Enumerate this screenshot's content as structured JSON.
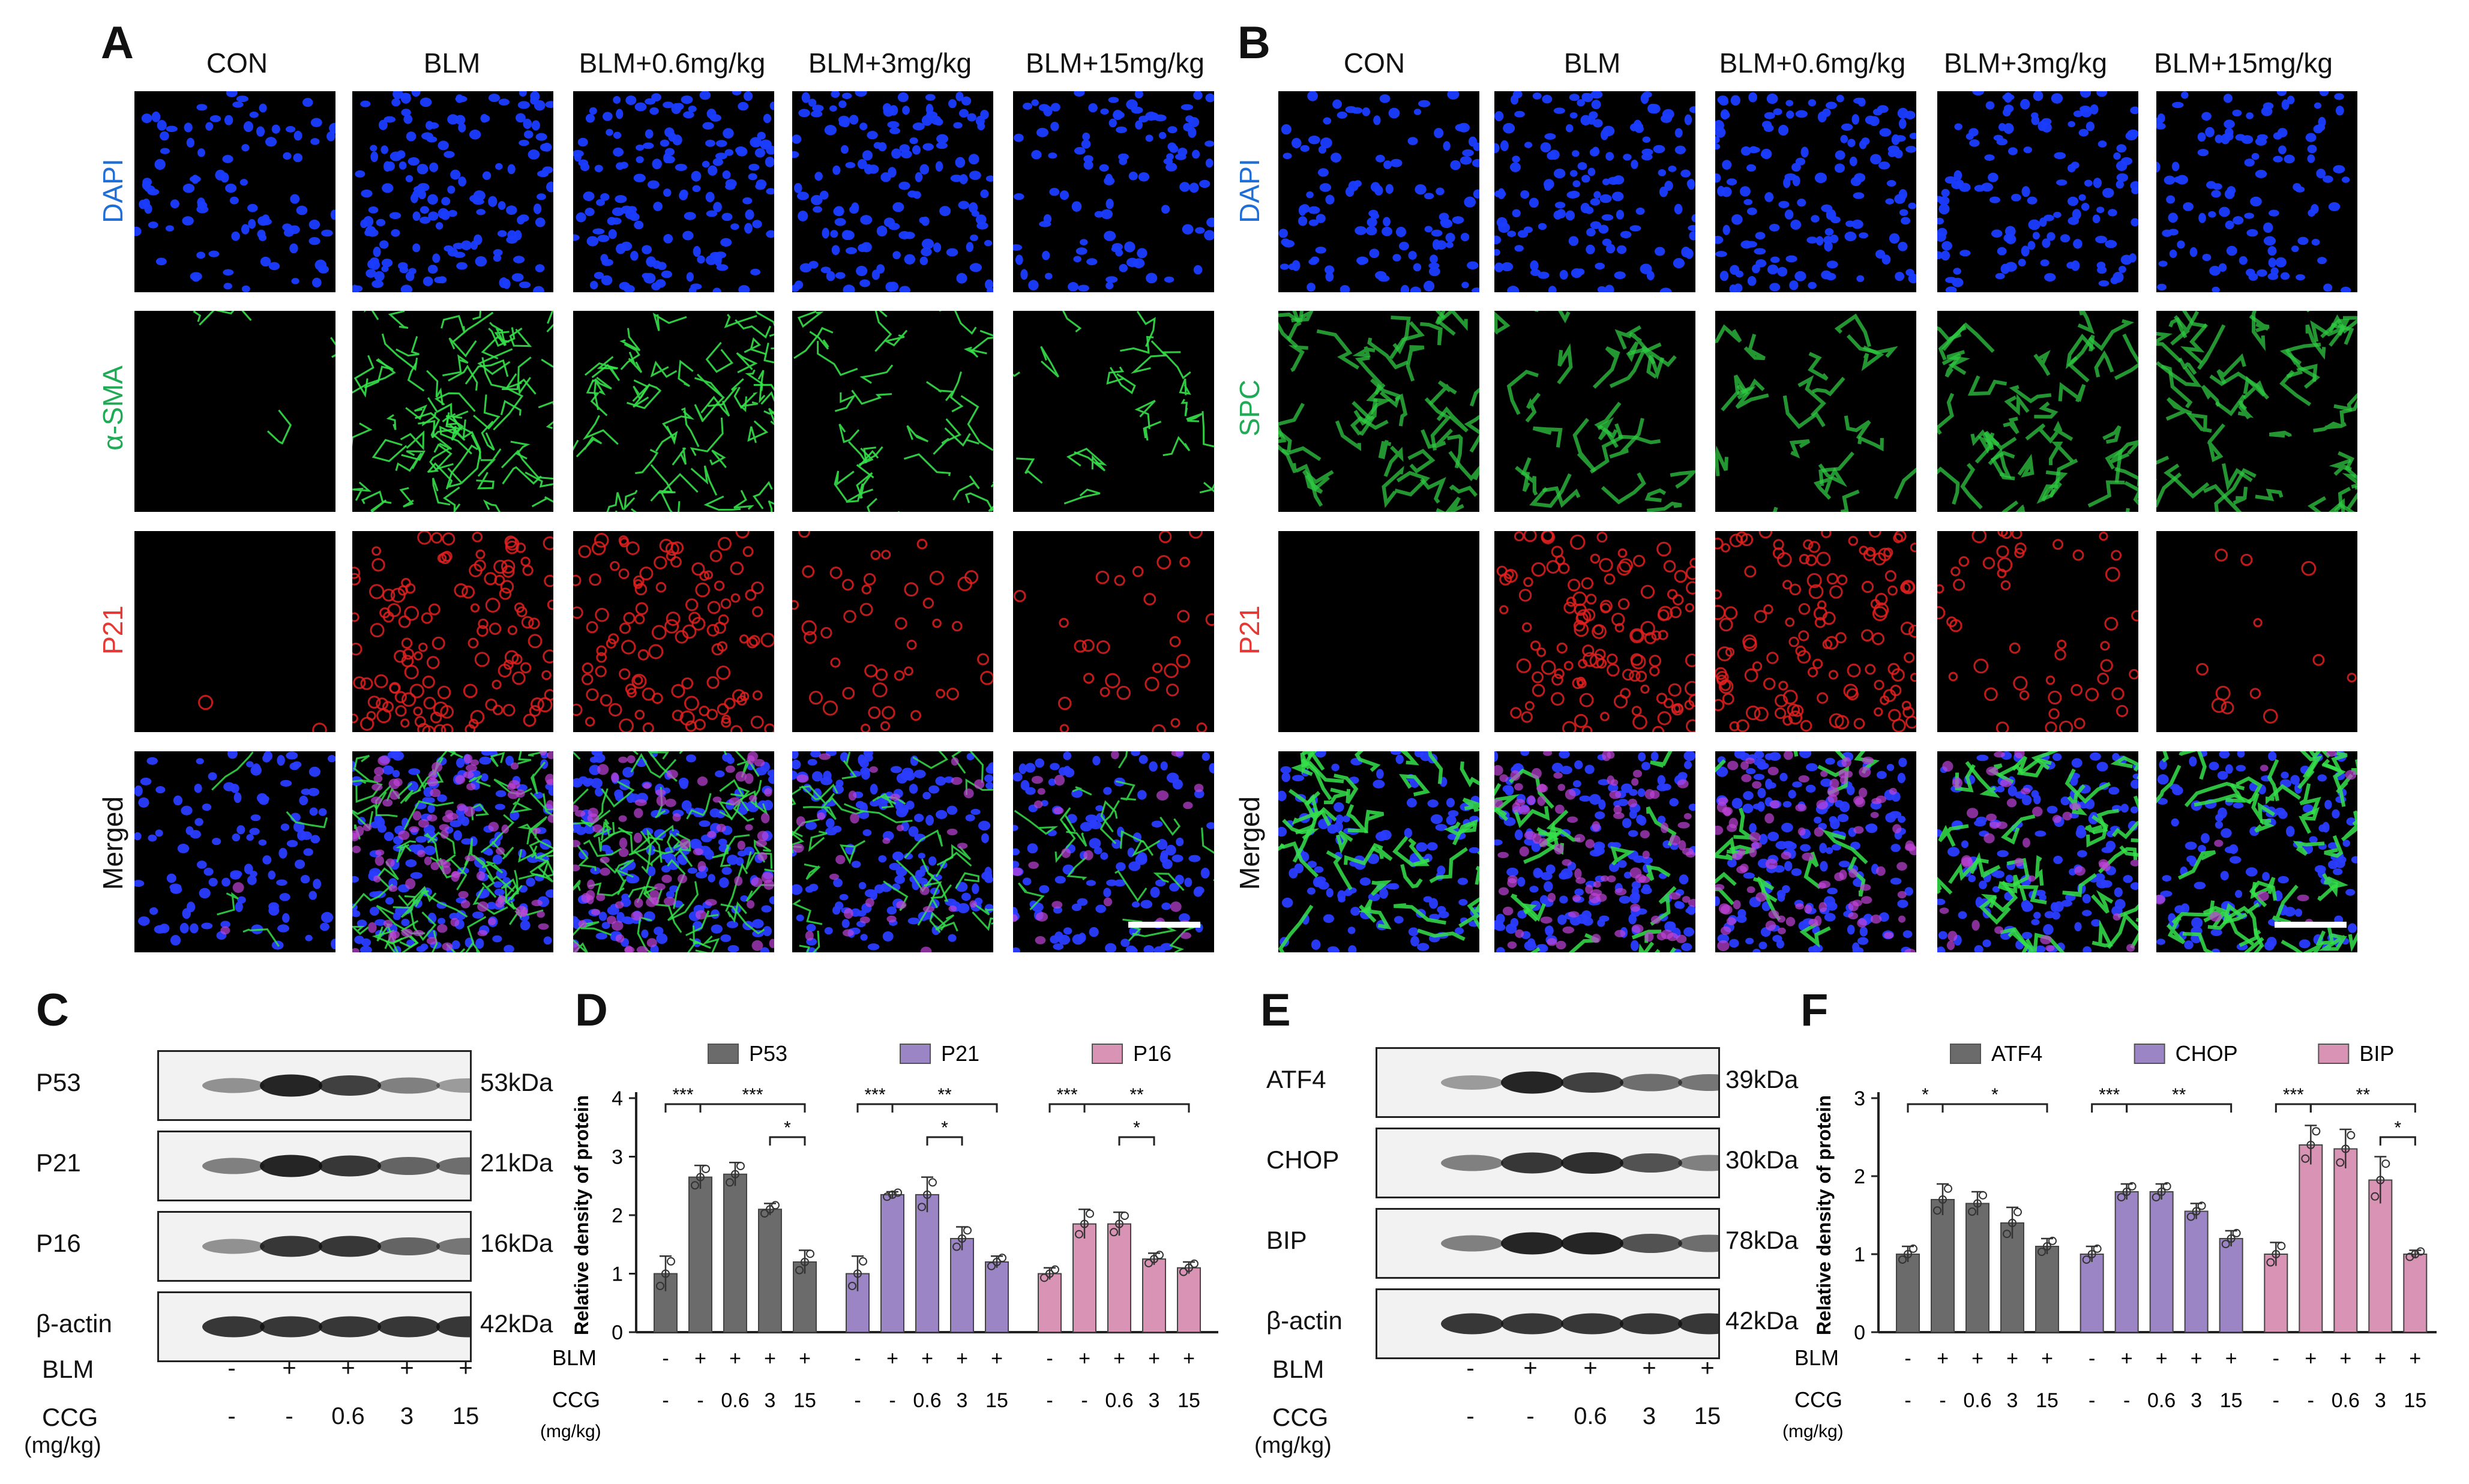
{
  "micrographs": {
    "A": {
      "letter": "A",
      "columns": [
        "CON",
        "BLM",
        "BLM+0.6mg/kg",
        "BLM+3mg/kg",
        "BLM+15mg/kg"
      ],
      "rows": [
        {
          "label": "DAPI",
          "color": "#1f6fd6",
          "stain": "dapi"
        },
        {
          "label": "α-SMA",
          "color": "#1faa55",
          "stain": "sma"
        },
        {
          "label": "P21",
          "color": "#e53935",
          "stain": "p21"
        },
        {
          "label": "Merged",
          "color": "#111111",
          "stain": "merged"
        }
      ],
      "density": {
        "dapi": [
          0.45,
          1.0,
          1.0,
          0.9,
          0.55
        ],
        "sma": [
          0.05,
          1.0,
          0.8,
          0.45,
          0.3
        ],
        "p21": [
          0.02,
          1.0,
          0.9,
          0.35,
          0.25
        ]
      }
    },
    "B": {
      "letter": "B",
      "columns": [
        "CON",
        "BLM",
        "BLM+0.6mg/kg",
        "BLM+3mg/kg",
        "BLM+15mg/kg"
      ],
      "rows": [
        {
          "label": "DAPI",
          "color": "#1f6fd6",
          "stain": "dapi"
        },
        {
          "label": "SPC",
          "color": "#1faa55",
          "stain": "spc"
        },
        {
          "label": "P21",
          "color": "#e53935",
          "stain": "p21"
        },
        {
          "label": "Merged",
          "color": "#111111",
          "stain": "merged"
        }
      ],
      "density": {
        "dapi": [
          0.6,
          0.9,
          0.9,
          0.75,
          0.6
        ],
        "spc": [
          0.9,
          0.45,
          0.3,
          0.8,
          1.0
        ],
        "p21": [
          0.0,
          1.0,
          1.0,
          0.4,
          0.1
        ]
      }
    }
  },
  "blots": {
    "C": {
      "letter": "C",
      "proteins": [
        {
          "name": "P53",
          "kda": "53kDa",
          "intensity": [
            0.35,
            0.95,
            0.8,
            0.45,
            0.3
          ]
        },
        {
          "name": "P21",
          "kda": "21kDa",
          "intensity": [
            0.45,
            0.95,
            0.85,
            0.6,
            0.55
          ]
        },
        {
          "name": "P16",
          "kda": "16kDa",
          "intensity": [
            0.35,
            0.85,
            0.85,
            0.6,
            0.5
          ]
        },
        {
          "name": "β-actin",
          "kda": "42kDa",
          "intensity": [
            0.85,
            0.85,
            0.85,
            0.85,
            0.85
          ]
        }
      ],
      "blm_label": "BLM",
      "blm": [
        "-",
        "+",
        "+",
        "+",
        "+"
      ],
      "ccg_label": "CCG",
      "ccg_unit": "(mg/kg)",
      "ccg": [
        "-",
        "-",
        "0.6",
        "3",
        "15"
      ]
    },
    "E": {
      "letter": "E",
      "proteins": [
        {
          "name": "ATF4",
          "kda": "39kDa",
          "intensity": [
            0.3,
            0.95,
            0.8,
            0.55,
            0.5
          ]
        },
        {
          "name": "CHOP",
          "kda": "30kDa",
          "intensity": [
            0.45,
            0.85,
            0.9,
            0.7,
            0.45
          ]
        },
        {
          "name": "BIP",
          "kda": "78kDa",
          "intensity": [
            0.45,
            0.95,
            0.95,
            0.7,
            0.55
          ]
        },
        {
          "name": "β-actin",
          "kda": "42kDa",
          "intensity": [
            0.85,
            0.85,
            0.85,
            0.85,
            0.85
          ]
        }
      ],
      "blm_label": "BLM",
      "blm": [
        "-",
        "+",
        "+",
        "+",
        "+"
      ],
      "ccg_label": "CCG",
      "ccg_unit": "(mg/kg)",
      "ccg": [
        "-",
        "-",
        "0.6",
        "3",
        "15"
      ]
    }
  },
  "chart_data": [
    {
      "panel": "D",
      "type": "bar",
      "ylabel": "Relative density of protein",
      "ylim": [
        0,
        4
      ],
      "yticks": [
        0,
        1,
        2,
        3,
        4
      ],
      "x_rows": {
        "BLM": [
          "-",
          "+",
          "+",
          "+",
          "+"
        ],
        "CCG": [
          "-",
          "-",
          "0.6",
          "3",
          "15"
        ]
      },
      "x_row_labels": [
        "BLM",
        "CCG",
        "(mg/kg)"
      ],
      "series": [
        {
          "name": "P53",
          "color": "#6b6b6b",
          "values": [
            1.0,
            2.65,
            2.7,
            2.1,
            1.2
          ],
          "errors": [
            0.3,
            0.2,
            0.2,
            0.1,
            0.2
          ],
          "significance": [
            {
              "from": 0,
              "to": 1,
              "label": "***",
              "level": 0
            },
            {
              "from": 1,
              "to": 4,
              "label": "***",
              "level": 0
            },
            {
              "from": 3,
              "to": 4,
              "label": "*",
              "level": 1
            }
          ]
        },
        {
          "name": "P21",
          "color": "#9b85c4",
          "values": [
            1.0,
            2.35,
            2.35,
            1.6,
            1.2
          ],
          "errors": [
            0.3,
            0.05,
            0.3,
            0.2,
            0.1
          ],
          "significance": [
            {
              "from": 0,
              "to": 1,
              "label": "***",
              "level": 0
            },
            {
              "from": 1,
              "to": 4,
              "label": "**",
              "level": 0
            },
            {
              "from": 2,
              "to": 3,
              "label": "*",
              "level": 1
            }
          ]
        },
        {
          "name": "P16",
          "color": "#d993b4",
          "values": [
            1.0,
            1.85,
            1.85,
            1.25,
            1.1
          ],
          "errors": [
            0.1,
            0.25,
            0.2,
            0.1,
            0.1
          ],
          "significance": [
            {
              "from": 0,
              "to": 1,
              "label": "***",
              "level": 0
            },
            {
              "from": 1,
              "to": 4,
              "label": "**",
              "level": 0
            },
            {
              "from": 2,
              "to": 3,
              "label": "*",
              "level": 1
            }
          ]
        }
      ]
    },
    {
      "panel": "F",
      "type": "bar",
      "ylabel": "Relative density of protein",
      "ylim": [
        0,
        3
      ],
      "yticks": [
        0,
        1,
        2,
        3
      ],
      "x_rows": {
        "BLM": [
          "-",
          "+",
          "+",
          "+",
          "+"
        ],
        "CCG": [
          "-",
          "-",
          "0.6",
          "3",
          "15"
        ]
      },
      "x_row_labels": [
        "BLM",
        "CCG",
        "(mg/kg)"
      ],
      "series": [
        {
          "name": "ATF4",
          "color": "#6b6b6b",
          "values": [
            1.0,
            1.7,
            1.65,
            1.4,
            1.1
          ],
          "errors": [
            0.1,
            0.2,
            0.15,
            0.2,
            0.1
          ],
          "significance": [
            {
              "from": 0,
              "to": 1,
              "label": "*",
              "level": 0
            },
            {
              "from": 1,
              "to": 4,
              "label": "*",
              "level": 0
            }
          ]
        },
        {
          "name": "CHOP",
          "color": "#9b85c4",
          "values": [
            1.0,
            1.8,
            1.8,
            1.55,
            1.2
          ],
          "errors": [
            0.1,
            0.1,
            0.1,
            0.1,
            0.1
          ],
          "significance": [
            {
              "from": 0,
              "to": 1,
              "label": "***",
              "level": 0
            },
            {
              "from": 1,
              "to": 4,
              "label": "**",
              "level": 0
            }
          ]
        },
        {
          "name": "BIP",
          "color": "#d993b4",
          "values": [
            1.0,
            2.4,
            2.35,
            1.95,
            1.0
          ],
          "errors": [
            0.15,
            0.25,
            0.25,
            0.3,
            0.05
          ],
          "significance": [
            {
              "from": 0,
              "to": 1,
              "label": "***",
              "level": 0
            },
            {
              "from": 1,
              "to": 4,
              "label": "**",
              "level": 0
            },
            {
              "from": 3,
              "to": 4,
              "label": "*",
              "level": 1
            }
          ]
        }
      ]
    }
  ]
}
